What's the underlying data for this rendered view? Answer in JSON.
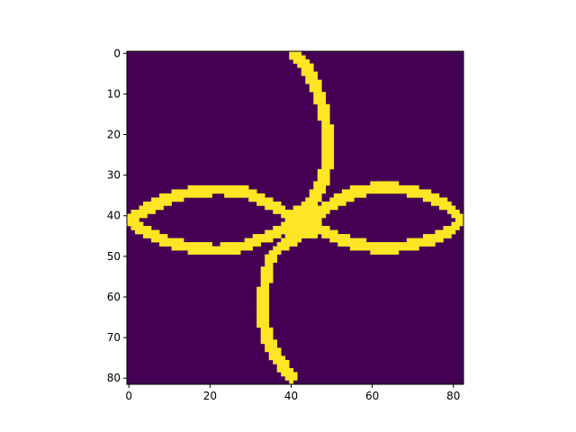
{
  "chart_data": {
    "type": "heatmap",
    "title": "",
    "xlabel": "",
    "ylabel": "",
    "colormap": "viridis",
    "colors": {
      "low": "#440154",
      "high": "#fde725"
    },
    "values": "binary (0/1) mask",
    "shape": [
      82,
      83
    ],
    "xlim": [
      -0.5,
      82.5
    ],
    "ylim": [
      81.5,
      -0.5
    ],
    "x_ticks": [
      0,
      20,
      40,
      60,
      80
    ],
    "y_ticks": [
      0,
      10,
      20,
      30,
      40,
      50,
      60,
      70,
      80
    ],
    "x_tick_labels": [
      "0",
      "20",
      "40",
      "60",
      "80"
    ],
    "y_tick_labels": [
      "0",
      "10",
      "20",
      "30",
      "40",
      "50",
      "60",
      "70",
      "80"
    ],
    "strokes": [
      {
        "name": "upper-stem",
        "width": 2.5,
        "points": [
          [
            41,
            0
          ],
          [
            44,
            4
          ],
          [
            46,
            8
          ],
          [
            48,
            14
          ],
          [
            49,
            20
          ],
          [
            49,
            26
          ],
          [
            48,
            31
          ],
          [
            46,
            35
          ],
          [
            44,
            38
          ],
          [
            42,
            40
          ]
        ]
      },
      {
        "name": "lower-stem",
        "width": 2.5,
        "points": [
          [
            42,
            45
          ],
          [
            38,
            47
          ],
          [
            35,
            50
          ],
          [
            34,
            54
          ],
          [
            33,
            60
          ],
          [
            33,
            65
          ],
          [
            34,
            70
          ],
          [
            36,
            74
          ],
          [
            38,
            77
          ],
          [
            40,
            80
          ]
        ]
      },
      {
        "name": "left-loop-top",
        "width": 2.4,
        "points": [
          [
            0,
            41
          ],
          [
            4,
            38.5
          ],
          [
            10,
            35.5
          ],
          [
            16,
            34
          ],
          [
            22,
            33.5
          ],
          [
            28,
            34
          ],
          [
            33,
            36
          ],
          [
            38,
            39
          ],
          [
            41,
            41
          ]
        ]
      },
      {
        "name": "left-loop-bottom",
        "width": 2.4,
        "points": [
          [
            0,
            41
          ],
          [
            4,
            44
          ],
          [
            10,
            46.5
          ],
          [
            16,
            48
          ],
          [
            22,
            48.5
          ],
          [
            28,
            47.5
          ],
          [
            33,
            45.5
          ],
          [
            38,
            43.5
          ],
          [
            41,
            42
          ]
        ]
      },
      {
        "name": "right-loop-top",
        "width": 2.4,
        "points": [
          [
            45,
            41
          ],
          [
            50,
            37
          ],
          [
            56,
            34
          ],
          [
            62,
            33
          ],
          [
            68,
            33.5
          ],
          [
            74,
            35
          ],
          [
            79,
            38
          ],
          [
            82,
            41
          ]
        ]
      },
      {
        "name": "right-loop-bottom",
        "width": 2.4,
        "points": [
          [
            45,
            42
          ],
          [
            50,
            45
          ],
          [
            56,
            47
          ],
          [
            62,
            48
          ],
          [
            68,
            47.5
          ],
          [
            74,
            46
          ],
          [
            79,
            44
          ],
          [
            82,
            41
          ]
        ]
      }
    ],
    "blobs": [
      {
        "name": "center-blob",
        "cx": 43.5,
        "cy": 41.5,
        "r": 4.5
      }
    ]
  }
}
